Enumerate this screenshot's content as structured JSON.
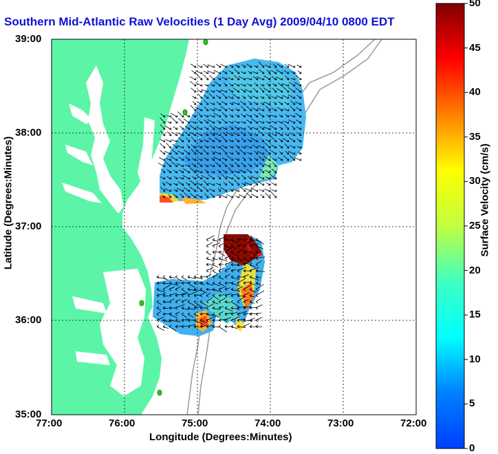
{
  "title": "Southern Mid-Atlantic Raw Velocities (1 Day Avg) 2009/04/10 0800 EDT",
  "xlabel": "Longitude (Degrees:Minutes)",
  "ylabel": "Latitude (Degrees:Minutes)",
  "x_ticks": [
    "77:00",
    "76:00",
    "75:00",
    "74:00",
    "73:00",
    "72:00"
  ],
  "y_ticks": [
    "39:00",
    "38:00",
    "37:00",
    "36:00",
    "35:00"
  ],
  "colorbar": {
    "label": "Surface Velocity (cm/s)",
    "ticks": [
      "50",
      "45",
      "40",
      "35",
      "30",
      "25",
      "20",
      "15",
      "10",
      "5",
      "0"
    ]
  },
  "colors": {
    "land": "#5cf5a8",
    "title": "#1010d8",
    "coast_station": "#22cc22",
    "bathymetry": "#999999"
  },
  "map": {
    "lon_range": [
      -77.0,
      -72.0
    ],
    "lat_range": [
      35.0,
      39.0
    ],
    "color_range_cm_s": [
      0,
      50
    ]
  }
}
